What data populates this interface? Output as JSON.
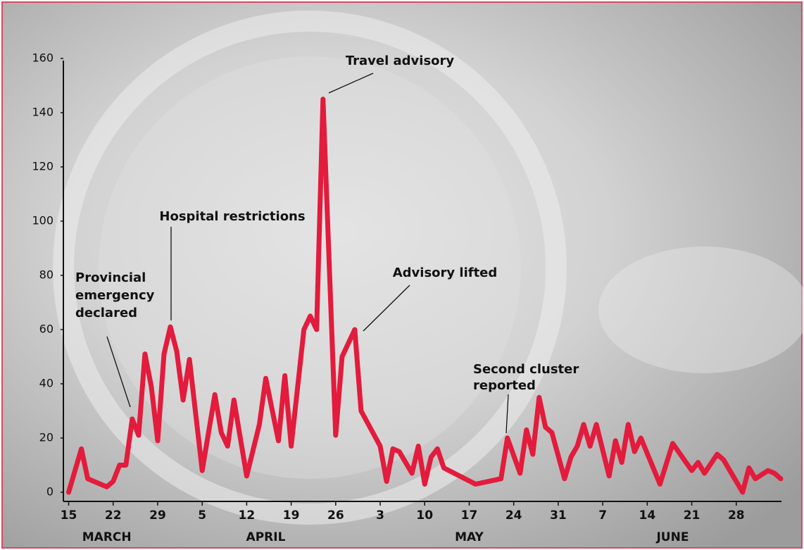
{
  "chart_data": {
    "type": "line",
    "x": [
      0,
      2,
      3,
      5,
      6,
      7,
      8,
      9,
      10,
      11,
      12,
      13,
      14,
      15,
      16,
      17,
      18,
      19,
      21,
      23,
      24,
      25,
      26,
      28,
      30,
      31,
      33,
      34,
      35,
      37,
      38,
      39,
      40,
      42,
      43,
      45,
      46,
      49,
      50,
      51,
      52,
      54,
      55,
      56,
      57,
      58,
      59,
      64,
      68,
      69,
      71,
      72,
      73,
      74,
      75,
      76,
      78,
      79,
      80,
      81,
      82,
      83,
      85,
      86,
      87,
      88,
      89,
      90,
      93,
      95,
      98,
      99,
      100,
      102,
      103,
      106,
      107,
      108,
      110,
      111,
      112
    ],
    "values": [
      0,
      16,
      5,
      3,
      2,
      4,
      10,
      10,
      27,
      21,
      51,
      39,
      19,
      51,
      61,
      52,
      34,
      49,
      8,
      36,
      22,
      17,
      34,
      6,
      25,
      42,
      19,
      43,
      17,
      60,
      65,
      60,
      145,
      21,
      50,
      60,
      30,
      17,
      4,
      16,
      15,
      7,
      17,
      3,
      13,
      16,
      9,
      3,
      5,
      20,
      7,
      23,
      14,
      35,
      24,
      22,
      5,
      13,
      17,
      25,
      17,
      25,
      6,
      19,
      11,
      25,
      15,
      20,
      3,
      18,
      8,
      11,
      7,
      14,
      12,
      0,
      9,
      5,
      8,
      7,
      5
    ],
    "color": "#e31b3c",
    "xlim": [
      -0.5,
      112
    ],
    "ylim": [
      0,
      160
    ],
    "yticks": [
      0,
      20,
      40,
      60,
      80,
      100,
      120,
      140,
      160
    ],
    "xticks": [
      {
        "value": 0,
        "label": "15"
      },
      {
        "value": 7,
        "label": "22"
      },
      {
        "value": 14,
        "label": "29"
      },
      {
        "value": 21,
        "label": "5"
      },
      {
        "value": 28,
        "label": "12"
      },
      {
        "value": 35,
        "label": "19"
      },
      {
        "value": 42,
        "label": "26"
      },
      {
        "value": 49,
        "label": "3"
      },
      {
        "value": 56,
        "label": "10"
      },
      {
        "value": 63,
        "label": "17"
      },
      {
        "value": 70,
        "label": "24"
      },
      {
        "value": 77,
        "label": "31"
      },
      {
        "value": 84,
        "label": "7"
      },
      {
        "value": 91,
        "label": "14"
      },
      {
        "value": 98,
        "label": "21"
      },
      {
        "value": 105,
        "label": "28"
      }
    ],
    "month_labels": [
      {
        "value": 6,
        "label": "MARCH"
      },
      {
        "value": 31,
        "label": "APRIL"
      },
      {
        "value": 63,
        "label": "MAY"
      },
      {
        "value": 95,
        "label": "JUNE"
      }
    ],
    "annotations": [
      [
        "Travel advisory"
      ],
      [
        "Hospital restrictions"
      ],
      [
        "Provincial",
        "emergency",
        "declared"
      ],
      [
        "Advisory lifted"
      ],
      [
        "Second cluster",
        "reported"
      ]
    ]
  }
}
